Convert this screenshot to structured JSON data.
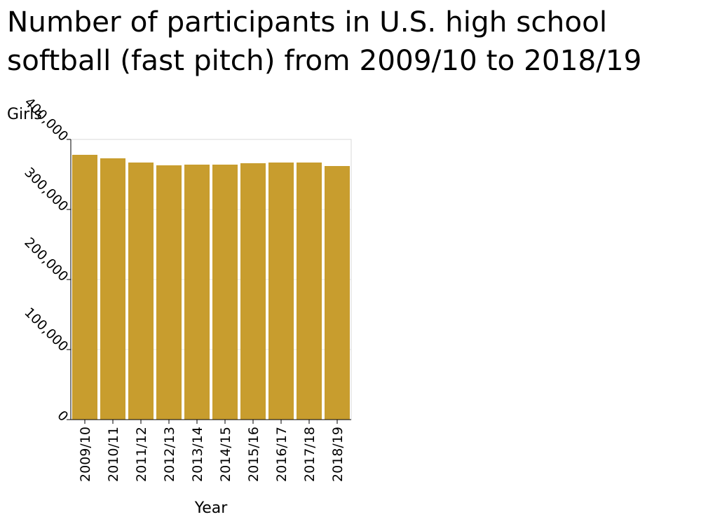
{
  "chart_data": {
    "type": "bar",
    "title": "Number of participants in U.S. high school softball (fast pitch) from 2009/10 to 2018/19",
    "xlabel": "Year",
    "ylabel": "Girls",
    "categories": [
      "2009/10",
      "2010/11",
      "2011/12",
      "2012/13",
      "2013/14",
      "2014/15",
      "2015/16",
      "2016/17",
      "2017/18",
      "2018/19"
    ],
    "values": [
      378000,
      373000,
      367000,
      363000,
      364000,
      364000,
      366000,
      367000,
      367000,
      362000
    ],
    "ylim": [
      0,
      400000
    ],
    "yticks": [
      0,
      100000,
      200000,
      300000,
      400000
    ],
    "ytick_labels": [
      "0",
      "100,000",
      "200,000",
      "300,000",
      "400,000"
    ],
    "grid": true,
    "bar_color": "#c89d2e",
    "grid_color": "#e4e4e4"
  }
}
